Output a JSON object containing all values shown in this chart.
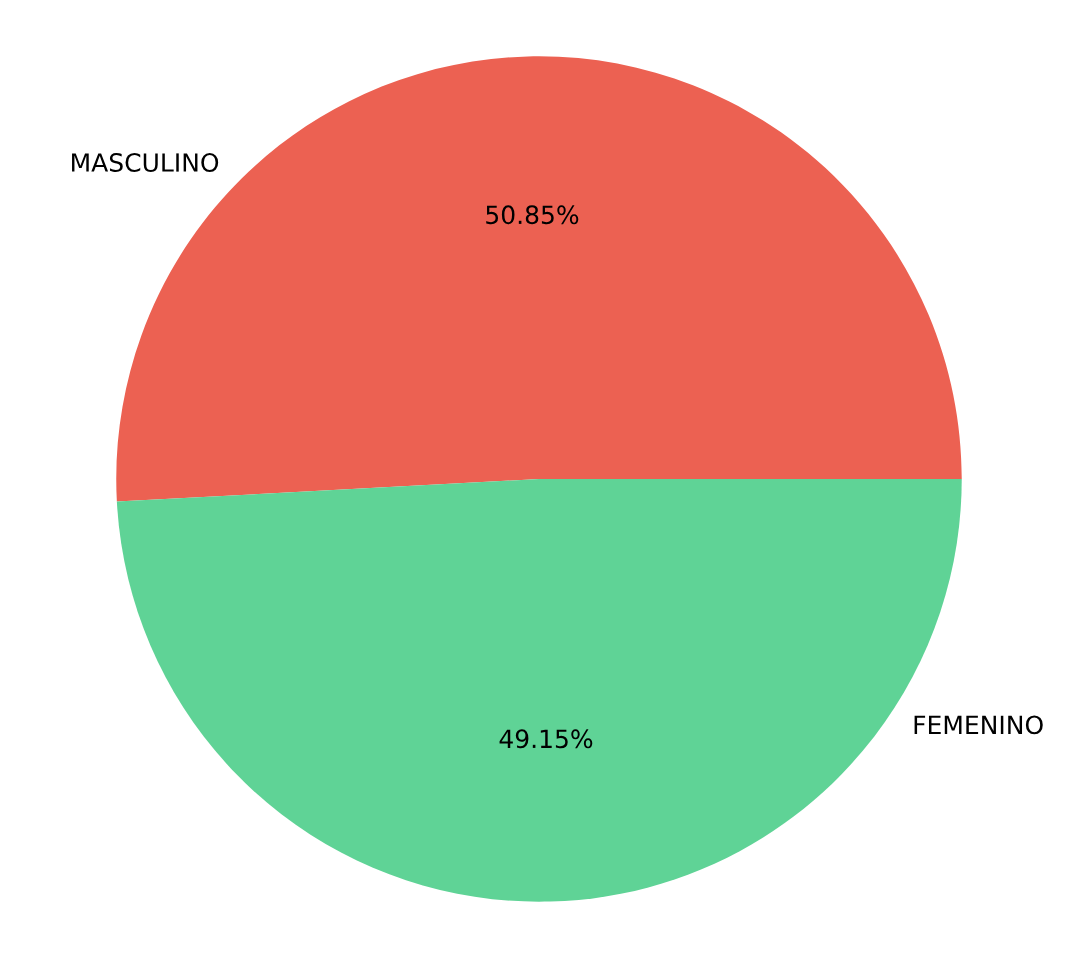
{
  "chart_data": {
    "type": "pie",
    "categories": [
      "MASCULINO",
      "FEMENINO"
    ],
    "values": [
      50.85,
      49.15
    ],
    "colors": [
      "#ec6152",
      "#5fd396"
    ],
    "value_labels": [
      "50.85%",
      "49.15%"
    ]
  }
}
